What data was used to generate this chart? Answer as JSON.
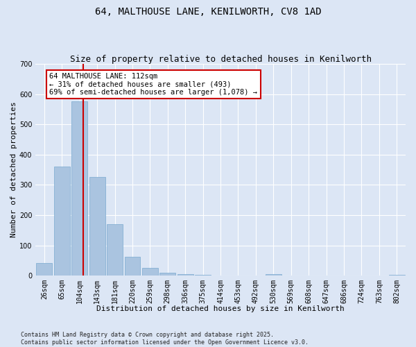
{
  "title": "64, MALTHOUSE LANE, KENILWORTH, CV8 1AD",
  "subtitle": "Size of property relative to detached houses in Kenilworth",
  "xlabel": "Distribution of detached houses by size in Kenilworth",
  "ylabel": "Number of detached properties",
  "categories": [
    "26sqm",
    "65sqm",
    "104sqm",
    "143sqm",
    "181sqm",
    "220sqm",
    "259sqm",
    "298sqm",
    "336sqm",
    "375sqm",
    "414sqm",
    "453sqm",
    "492sqm",
    "530sqm",
    "569sqm",
    "608sqm",
    "647sqm",
    "686sqm",
    "724sqm",
    "763sqm",
    "802sqm"
  ],
  "values": [
    42,
    360,
    575,
    325,
    170,
    63,
    25,
    10,
    5,
    3,
    0,
    0,
    0,
    5,
    0,
    0,
    0,
    0,
    0,
    0,
    3
  ],
  "bar_color": "#aac4e0",
  "bar_edge_color": "#7aaad0",
  "vline_color": "#cc0000",
  "vline_pos": 2.2,
  "annotation_text": "64 MALTHOUSE LANE: 112sqm\n← 31% of detached houses are smaller (493)\n69% of semi-detached houses are larger (1,078) →",
  "annotation_box_color": "#ffffff",
  "annotation_box_edge": "#cc0000",
  "background_color": "#dce6f5",
  "plot_bg_color": "#dce6f5",
  "ylim": [
    0,
    700
  ],
  "yticks": [
    0,
    100,
    200,
    300,
    400,
    500,
    600,
    700
  ],
  "footer_text": "Contains HM Land Registry data © Crown copyright and database right 2025.\nContains public sector information licensed under the Open Government Licence v3.0.",
  "title_fontsize": 10,
  "subtitle_fontsize": 9,
  "axis_label_fontsize": 8,
  "tick_fontsize": 7,
  "footer_fontsize": 6
}
